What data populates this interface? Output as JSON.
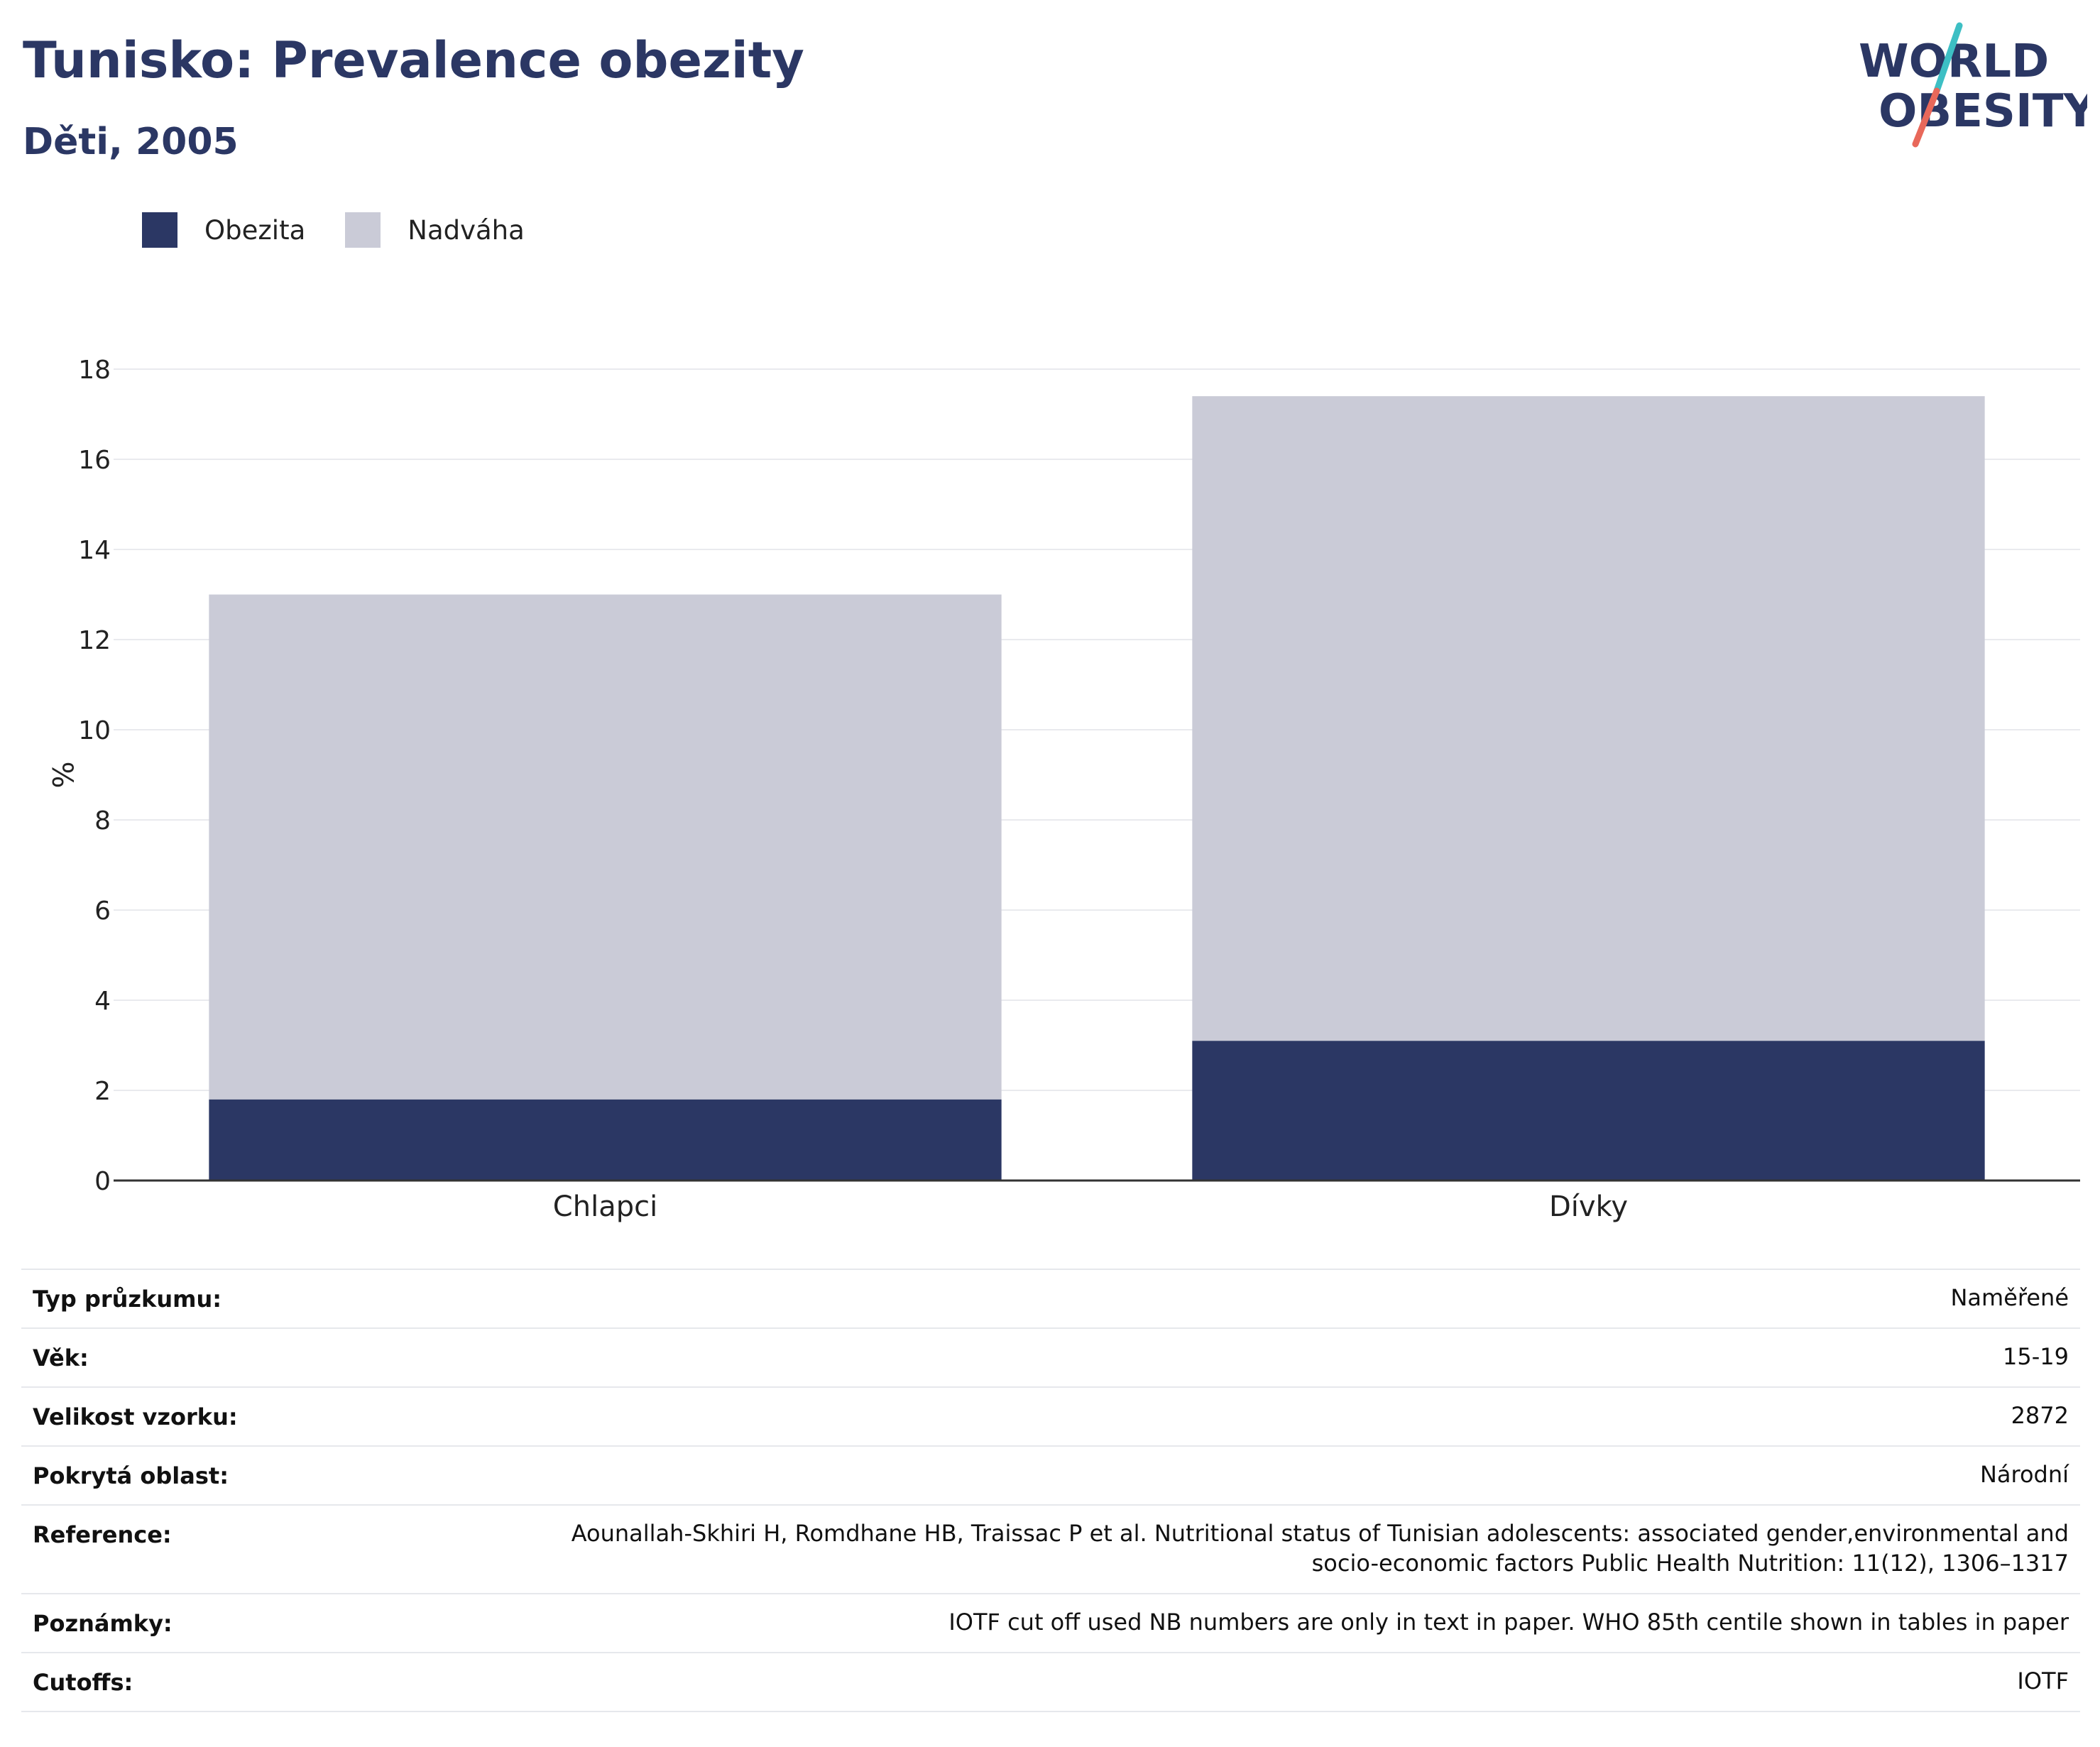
{
  "header": {
    "title": "Tunisko: Prevalence obezity",
    "subtitle": "Děti, 2005"
  },
  "logo": {
    "line1": "WORLD",
    "line2": "OBESITY",
    "colors": {
      "text": "#2b3764",
      "slash_top": "#3dbfc4",
      "slash_bottom": "#e8685a"
    }
  },
  "legend": [
    {
      "label": "Obezita",
      "color": "#2b3764"
    },
    {
      "label": "Nadváha",
      "color": "#cacbd7"
    }
  ],
  "chart_data": {
    "type": "bar",
    "stacked": true,
    "categories": [
      "Chlapci",
      "Dívky"
    ],
    "series": [
      {
        "name": "Obezita",
        "values": [
          1.8,
          3.1
        ],
        "color": "#2b3764"
      },
      {
        "name": "Nadváha",
        "values": [
          11.2,
          14.3
        ],
        "color": "#cacbd7"
      }
    ],
    "ylabel": "%",
    "ylim": [
      0,
      18
    ],
    "yticks": [
      0,
      2,
      4,
      6,
      8,
      10,
      12,
      14,
      16,
      18
    ],
    "grid": true,
    "legend_position": "top-left"
  },
  "info": {
    "rows": [
      {
        "label": "Typ průzkumu:",
        "value": "Naměřené"
      },
      {
        "label": "Věk:",
        "value": "15-19"
      },
      {
        "label": "Velikost vzorku:",
        "value": "2872"
      },
      {
        "label": "Pokrytá oblast:",
        "value": "Národní"
      },
      {
        "label": "Reference:",
        "value": "Aounallah-Skhiri H, Romdhane HB, Traissac P et al. Nutritional status of Tunisian adolescents: associated gender,environmental and socio-economic factors Public Health Nutrition: 11(12), 1306–1317"
      },
      {
        "label": "Poznámky:",
        "value": "IOTF cut off used NB numbers are only in text in paper. WHO 85th centile shown in tables in paper"
      },
      {
        "label": "Cutoffs:",
        "value": "IOTF"
      }
    ]
  }
}
